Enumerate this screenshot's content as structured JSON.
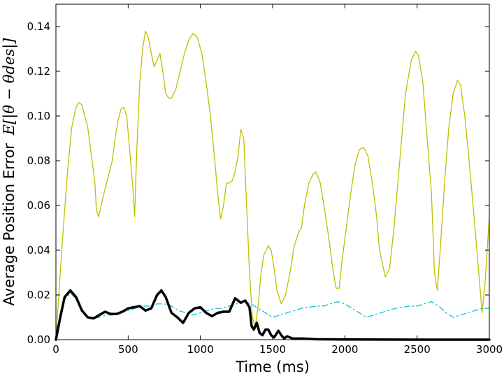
{
  "chart_data": {
    "type": "line",
    "xlabel": "Time (ms)",
    "ylabel": "Average Position Error",
    "ylabel_math": "E[|θ − θdes|]",
    "xlim": [
      0,
      3000
    ],
    "ylim": [
      0,
      0.15
    ],
    "x_ticks": [
      0,
      500,
      1000,
      1500,
      2000,
      2500,
      3000
    ],
    "x_tick_labels": [
      "0",
      "500",
      "1000",
      "1500",
      "2000",
      "2500",
      "3000"
    ],
    "y_ticks": [
      0,
      0.02,
      0.04,
      0.06,
      0.08,
      0.1,
      0.12,
      0.14
    ],
    "y_tick_labels": [
      "0.00",
      "0.02",
      "0.04",
      "0.06",
      "0.08",
      "0.10",
      "0.12",
      "0.14"
    ],
    "grid": false,
    "legend": "none",
    "series": [
      {
        "color": "#bfbf00",
        "style": "solid",
        "width": 1.3,
        "points": [
          [
            0,
            0
          ],
          [
            40,
            0.04
          ],
          [
            80,
            0.075
          ],
          [
            110,
            0.095
          ],
          [
            140,
            0.104
          ],
          [
            160,
            0.106
          ],
          [
            180,
            0.105
          ],
          [
            200,
            0.1
          ],
          [
            220,
            0.095
          ],
          [
            240,
            0.085
          ],
          [
            270,
            0.07
          ],
          [
            280,
            0.058
          ],
          [
            295,
            0.055
          ],
          [
            320,
            0.062
          ],
          [
            350,
            0.07
          ],
          [
            390,
            0.08
          ],
          [
            410,
            0.09
          ],
          [
            430,
            0.098
          ],
          [
            450,
            0.103
          ],
          [
            470,
            0.104
          ],
          [
            490,
            0.1
          ],
          [
            510,
            0.085
          ],
          [
            530,
            0.07
          ],
          [
            545,
            0.055
          ],
          [
            560,
            0.085
          ],
          [
            580,
            0.115
          ],
          [
            600,
            0.13
          ],
          [
            620,
            0.138
          ],
          [
            640,
            0.135
          ],
          [
            660,
            0.128
          ],
          [
            680,
            0.122
          ],
          [
            700,
            0.125
          ],
          [
            720,
            0.128
          ],
          [
            740,
            0.12
          ],
          [
            760,
            0.11
          ],
          [
            780,
            0.108
          ],
          [
            800,
            0.108
          ],
          [
            830,
            0.112
          ],
          [
            860,
            0.12
          ],
          [
            890,
            0.128
          ],
          [
            920,
            0.134
          ],
          [
            950,
            0.137
          ],
          [
            980,
            0.135
          ],
          [
            1010,
            0.128
          ],
          [
            1040,
            0.115
          ],
          [
            1070,
            0.1
          ],
          [
            1100,
            0.08
          ],
          [
            1120,
            0.065
          ],
          [
            1140,
            0.054
          ],
          [
            1160,
            0.06
          ],
          [
            1180,
            0.07
          ],
          [
            1200,
            0.07
          ],
          [
            1220,
            0.071
          ],
          [
            1240,
            0.075
          ],
          [
            1260,
            0.082
          ],
          [
            1280,
            0.094
          ],
          [
            1300,
            0.09
          ],
          [
            1320,
            0.06
          ],
          [
            1340,
            0.03
          ],
          [
            1360,
            0.01
          ],
          [
            1380,
            0.006
          ],
          [
            1400,
            0.015
          ],
          [
            1420,
            0.03
          ],
          [
            1440,
            0.038
          ],
          [
            1470,
            0.042
          ],
          [
            1490,
            0.04
          ],
          [
            1510,
            0.032
          ],
          [
            1530,
            0.022
          ],
          [
            1560,
            0.016
          ],
          [
            1590,
            0.02
          ],
          [
            1620,
            0.03
          ],
          [
            1650,
            0.042
          ],
          [
            1680,
            0.048
          ],
          [
            1700,
            0.05
          ],
          [
            1720,
            0.06
          ],
          [
            1750,
            0.07
          ],
          [
            1780,
            0.074
          ],
          [
            1800,
            0.075
          ],
          [
            1830,
            0.07
          ],
          [
            1860,
            0.058
          ],
          [
            1890,
            0.045
          ],
          [
            1920,
            0.03
          ],
          [
            1940,
            0.023
          ],
          [
            1960,
            0.023
          ],
          [
            1980,
            0.035
          ],
          [
            2010,
            0.05
          ],
          [
            2040,
            0.065
          ],
          [
            2070,
            0.078
          ],
          [
            2100,
            0.085
          ],
          [
            2130,
            0.086
          ],
          [
            2160,
            0.082
          ],
          [
            2190,
            0.07
          ],
          [
            2220,
            0.055
          ],
          [
            2240,
            0.04
          ],
          [
            2280,
            0.028
          ],
          [
            2310,
            0.032
          ],
          [
            2340,
            0.05
          ],
          [
            2380,
            0.08
          ],
          [
            2420,
            0.11
          ],
          [
            2460,
            0.125
          ],
          [
            2490,
            0.129
          ],
          [
            2510,
            0.127
          ],
          [
            2540,
            0.115
          ],
          [
            2570,
            0.09
          ],
          [
            2600,
            0.065
          ],
          [
            2620,
            0.03
          ],
          [
            2640,
            0.022
          ],
          [
            2660,
            0.04
          ],
          [
            2690,
            0.07
          ],
          [
            2720,
            0.095
          ],
          [
            2750,
            0.11
          ],
          [
            2780,
            0.116
          ],
          [
            2800,
            0.114
          ],
          [
            2830,
            0.1
          ],
          [
            2860,
            0.08
          ],
          [
            2890,
            0.058
          ],
          [
            2920,
            0.035
          ],
          [
            2950,
            0.012
          ],
          [
            2970,
            0.025
          ],
          [
            2985,
            0.04
          ],
          [
            3000,
            0.055
          ]
        ]
      },
      {
        "color": "#00bcd4",
        "style": "dashdot",
        "width": 1.2,
        "points": [
          [
            0,
            0
          ],
          [
            30,
            0.01
          ],
          [
            60,
            0.018
          ],
          [
            100,
            0.021
          ],
          [
            140,
            0.018
          ],
          [
            180,
            0.013
          ],
          [
            220,
            0.01
          ],
          [
            260,
            0.0095
          ],
          [
            300,
            0.01
          ],
          [
            350,
            0.011
          ],
          [
            400,
            0.011
          ],
          [
            450,
            0.012
          ],
          [
            500,
            0.013
          ],
          [
            550,
            0.014
          ],
          [
            600,
            0.015
          ],
          [
            650,
            0.015
          ],
          [
            700,
            0.016
          ],
          [
            750,
            0.016
          ],
          [
            800,
            0.015
          ],
          [
            850,
            0.013
          ],
          [
            900,
            0.012
          ],
          [
            950,
            0.011
          ],
          [
            1000,
            0.012
          ],
          [
            1050,
            0.013
          ],
          [
            1100,
            0.014
          ],
          [
            1150,
            0.014
          ],
          [
            1200,
            0.015
          ],
          [
            1250,
            0.016
          ],
          [
            1300,
            0.017
          ],
          [
            1350,
            0.016
          ],
          [
            1400,
            0.014
          ],
          [
            1450,
            0.012
          ],
          [
            1500,
            0.01
          ],
          [
            1550,
            0.011
          ],
          [
            1600,
            0.012
          ],
          [
            1650,
            0.013
          ],
          [
            1700,
            0.014
          ],
          [
            1750,
            0.0145
          ],
          [
            1800,
            0.015
          ],
          [
            1850,
            0.015
          ],
          [
            1900,
            0.016
          ],
          [
            1950,
            0.017
          ],
          [
            2000,
            0.016
          ],
          [
            2050,
            0.014
          ],
          [
            2100,
            0.012
          ],
          [
            2150,
            0.01
          ],
          [
            2200,
            0.011
          ],
          [
            2250,
            0.012
          ],
          [
            2300,
            0.013
          ],
          [
            2350,
            0.014
          ],
          [
            2400,
            0.0145
          ],
          [
            2450,
            0.015
          ],
          [
            2500,
            0.015
          ],
          [
            2550,
            0.016
          ],
          [
            2600,
            0.017
          ],
          [
            2650,
            0.015
          ],
          [
            2700,
            0.012
          ],
          [
            2750,
            0.01
          ],
          [
            2800,
            0.011
          ],
          [
            2850,
            0.012
          ],
          [
            2900,
            0.013
          ],
          [
            2950,
            0.014
          ],
          [
            3000,
            0.014
          ]
        ]
      },
      {
        "color": "#000000",
        "style": "solid",
        "width": 3.5,
        "points": [
          [
            0,
            0
          ],
          [
            30,
            0.01
          ],
          [
            60,
            0.019
          ],
          [
            100,
            0.022
          ],
          [
            140,
            0.019
          ],
          [
            180,
            0.013
          ],
          [
            220,
            0.01
          ],
          [
            260,
            0.0095
          ],
          [
            300,
            0.011
          ],
          [
            340,
            0.0125
          ],
          [
            380,
            0.0115
          ],
          [
            420,
            0.0115
          ],
          [
            460,
            0.0125
          ],
          [
            500,
            0.014
          ],
          [
            540,
            0.0145
          ],
          [
            580,
            0.015
          ],
          [
            620,
            0.013
          ],
          [
            660,
            0.014
          ],
          [
            700,
            0.02
          ],
          [
            730,
            0.022
          ],
          [
            760,
            0.019
          ],
          [
            800,
            0.012
          ],
          [
            840,
            0.01
          ],
          [
            880,
            0.0075
          ],
          [
            920,
            0.012
          ],
          [
            960,
            0.014
          ],
          [
            1000,
            0.0145
          ],
          [
            1040,
            0.012
          ],
          [
            1080,
            0.0105
          ],
          [
            1120,
            0.012
          ],
          [
            1160,
            0.0125
          ],
          [
            1200,
            0.0125
          ],
          [
            1240,
            0.0185
          ],
          [
            1280,
            0.0165
          ],
          [
            1310,
            0.0175
          ],
          [
            1340,
            0.0145
          ],
          [
            1355,
            0.006
          ],
          [
            1370,
            0.0045
          ],
          [
            1390,
            0.0075
          ],
          [
            1410,
            0.003
          ],
          [
            1430,
            0.002
          ],
          [
            1450,
            0.0045
          ],
          [
            1470,
            0.0045
          ],
          [
            1490,
            0.002
          ],
          [
            1510,
            0.001
          ],
          [
            1540,
            0.004
          ],
          [
            1560,
            0.002
          ],
          [
            1580,
            0.0005
          ],
          [
            1600,
            0.0015
          ],
          [
            1640,
            0.0005
          ],
          [
            1700,
            0.0005
          ],
          [
            1800,
            0.0002
          ],
          [
            2000,
            0.0001
          ],
          [
            2500,
            0
          ],
          [
            3000,
            0
          ]
        ]
      }
    ]
  }
}
